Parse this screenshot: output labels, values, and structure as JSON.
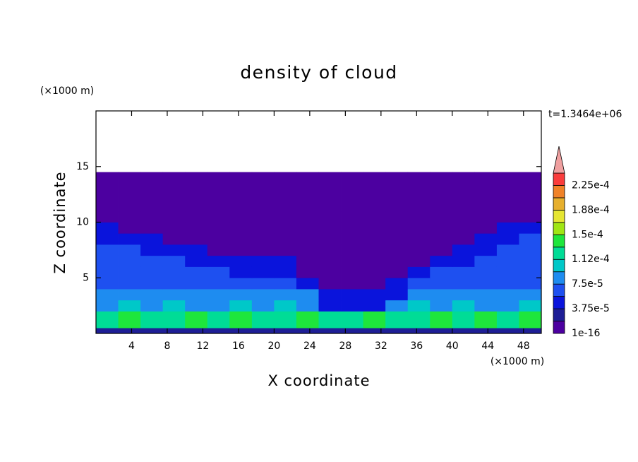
{
  "chart_data": {
    "type": "contour",
    "title": "density of cloud",
    "x_label": "X coordinate",
    "y_label": "Z coordinate",
    "x_unit": "(×1000 m)",
    "y_unit": "(×1000 m)",
    "time_label": "t=1.3464e+06",
    "xlim": [
      0,
      50
    ],
    "ylim": [
      0,
      20
    ],
    "xticks": [
      4,
      8,
      12,
      16,
      20,
      24,
      28,
      32,
      36,
      40,
      44,
      48
    ],
    "yticks": [
      5,
      10,
      15
    ],
    "field": {
      "x_edges": [
        0,
        2.5,
        5,
        7.5,
        10,
        12.5,
        15,
        17.5,
        20,
        22.5,
        25,
        27.5,
        30,
        32.5,
        35,
        37.5,
        40,
        42.5,
        45,
        47.5,
        50
      ],
      "z_edges": [
        0,
        0.5,
        2,
        3,
        4,
        5,
        6,
        7,
        8,
        9,
        10,
        11,
        14.5
      ],
      "values": [
        [
          2.5e-05,
          2.5e-05,
          2.5e-05,
          2.5e-05,
          2.5e-05,
          2.5e-05,
          2.5e-05,
          2.5e-05,
          2.5e-05,
          2.5e-05,
          2.5e-05,
          2.5e-05,
          2.5e-05,
          2.5e-05,
          2.5e-05,
          2.5e-05,
          2.5e-05,
          2.5e-05,
          2.5e-05,
          2.5e-05
        ],
        [
          0.00012,
          0.00014,
          0.00012,
          0.00012,
          0.00014,
          0.00012,
          0.00014,
          0.00012,
          0.00012,
          0.00014,
          0.00012,
          0.00012,
          0.00014,
          0.00012,
          0.00012,
          0.00014,
          0.00012,
          0.00014,
          0.00012,
          0.00014
        ],
        [
          9e-05,
          0.0001,
          9e-05,
          0.0001,
          9e-05,
          9e-05,
          0.0001,
          9e-05,
          0.0001,
          9e-05,
          4e-05,
          4e-05,
          4e-05,
          9e-05,
          0.0001,
          9e-05,
          0.0001,
          9e-05,
          9e-05,
          0.0001
        ],
        [
          8e-05,
          8e-05,
          8e-05,
          8e-05,
          8e-05,
          8e-05,
          8e-05,
          8e-05,
          8e-05,
          8e-05,
          4e-05,
          4e-05,
          4e-05,
          4e-05,
          8e-05,
          8e-05,
          8e-05,
          8e-05,
          8e-05,
          8e-05
        ],
        [
          7e-05,
          7e-05,
          7e-05,
          7e-05,
          7e-05,
          7e-05,
          7e-05,
          7e-05,
          7e-05,
          4e-05,
          1e-16,
          1e-16,
          1e-16,
          4e-05,
          7e-05,
          7e-05,
          7e-05,
          7e-05,
          7e-05,
          7e-05
        ],
        [
          6e-05,
          6e-05,
          6e-05,
          6e-05,
          6e-05,
          6e-05,
          4e-05,
          4e-05,
          4e-05,
          1e-16,
          1e-16,
          1e-16,
          1e-16,
          1e-16,
          4e-05,
          6e-05,
          6e-05,
          6e-05,
          6e-05,
          6e-05
        ],
        [
          6e-05,
          6e-05,
          6e-05,
          6e-05,
          4e-05,
          4e-05,
          4e-05,
          4e-05,
          4e-05,
          1e-16,
          1e-16,
          1e-16,
          1e-16,
          1e-16,
          1e-16,
          4e-05,
          4e-05,
          6e-05,
          6e-05,
          6e-05
        ],
        [
          6e-05,
          6e-05,
          4e-05,
          4e-05,
          4e-05,
          1e-16,
          1e-16,
          1e-16,
          1e-16,
          1e-16,
          1e-16,
          1e-16,
          1e-16,
          1e-16,
          1e-16,
          1e-16,
          4e-05,
          4e-05,
          6e-05,
          6e-05
        ],
        [
          4e-05,
          4e-05,
          4e-05,
          1e-16,
          1e-16,
          1e-16,
          1e-16,
          1e-16,
          1e-16,
          1e-16,
          1e-16,
          1e-16,
          1e-16,
          1e-16,
          1e-16,
          1e-16,
          1e-16,
          4e-05,
          4e-05,
          6e-05
        ],
        [
          4e-05,
          1e-16,
          1e-16,
          1e-16,
          1e-16,
          1e-16,
          1e-16,
          1e-16,
          1e-16,
          1e-16,
          1e-16,
          1e-16,
          1e-16,
          1e-16,
          1e-16,
          1e-16,
          1e-16,
          1e-16,
          4e-05,
          4e-05
        ],
        [
          1e-16,
          1e-16,
          1e-16,
          1e-16,
          1e-16,
          1e-16,
          1e-16,
          1e-16,
          1e-16,
          1e-16,
          1e-16,
          1e-16,
          1e-16,
          1e-16,
          1e-16,
          1e-16,
          1e-16,
          1e-16,
          1e-16,
          1e-16
        ],
        [
          1e-16,
          1e-16,
          1e-16,
          1e-16,
          1e-16,
          1e-16,
          1e-16,
          1e-16,
          1e-16,
          1e-16,
          1e-16,
          1e-16,
          1e-16,
          1e-16,
          1e-16,
          1e-16,
          1e-16,
          1e-16,
          1e-16,
          1e-16
        ]
      ]
    },
    "colorbar": {
      "levels": [
        1e-16,
        1.875e-05,
        3.75e-05,
        5.625e-05,
        7.5e-05,
        9.375e-05,
        0.0001125,
        0.00013125,
        0.00015,
        0.00016875,
        0.0001875,
        0.00020625,
        0.000225,
        0.00024375
      ],
      "colors": [
        "#4c00a0",
        "#1e1e96",
        "#0a14dc",
        "#1e50f0",
        "#1e8cf0",
        "#00c8c8",
        "#00dc96",
        "#1ee63c",
        "#a0e614",
        "#e6e632",
        "#e6af2d",
        "#f08228",
        "#fa3c3c"
      ],
      "extend_color": "#f0a0a0",
      "ticks": [
        1e-16,
        {
          "value": 3.75e-05,
          "label": "3.75e-5"
        },
        {
          "value": 7.5e-05,
          "label": "7.5e-5"
        },
        {
          "value": 0.0001125,
          "label": "1.12e-4"
        },
        {
          "value": 0.00015,
          "label": "1.5e-4"
        },
        {
          "value": 0.0001875,
          "label": "1.88e-4"
        },
        {
          "value": 0.000225,
          "label": "2.25e-4"
        }
      ]
    }
  }
}
